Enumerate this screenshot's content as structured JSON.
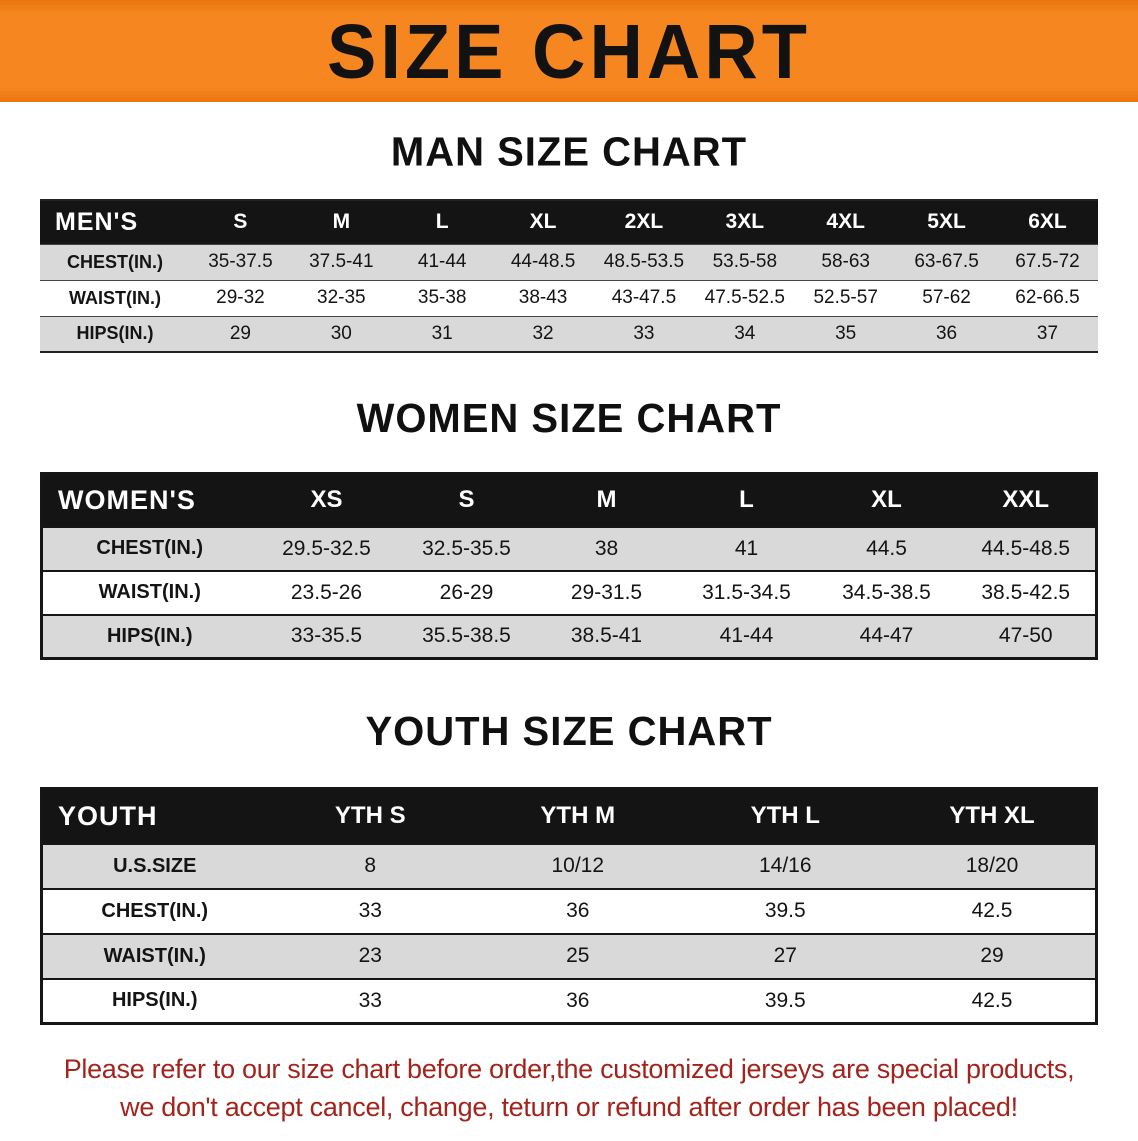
{
  "banner": {
    "title": "SIZE CHART"
  },
  "colors": {
    "banner_bg": "#f6861f",
    "header_bg": "#141414",
    "row_alt": "#d9d9d9",
    "note_red": "#a3241c"
  },
  "sections": {
    "men": {
      "heading": "MAN SIZE CHART",
      "table": {
        "header": [
          "MEN'S",
          "S",
          "M",
          "L",
          "XL",
          "2XL",
          "3XL",
          "4XL",
          "5XL",
          "6XL"
        ],
        "rows": [
          [
            "CHEST(IN.)",
            "35-37.5",
            "37.5-41",
            "41-44",
            "44-48.5",
            "48.5-53.5",
            "53.5-58",
            "58-63",
            "63-67.5",
            "67.5-72"
          ],
          [
            "WAIST(IN.)",
            "29-32",
            "32-35",
            "35-38",
            "38-43",
            "43-47.5",
            "47.5-52.5",
            "52.5-57",
            "57-62",
            "62-66.5"
          ],
          [
            "HIPS(IN.)",
            "29",
            "30",
            "31",
            "32",
            "33",
            "34",
            "35",
            "36",
            "37"
          ]
        ]
      }
    },
    "women": {
      "heading": "WOMEN SIZE CHART",
      "table": {
        "header": [
          "WOMEN'S",
          "XS",
          "S",
          "M",
          "L",
          "XL",
          "XXL"
        ],
        "rows": [
          [
            "CHEST(IN.)",
            "29.5-32.5",
            "32.5-35.5",
            "38",
            "41",
            "44.5",
            "44.5-48.5"
          ],
          [
            "WAIST(IN.)",
            "23.5-26",
            "26-29",
            "29-31.5",
            "31.5-34.5",
            "34.5-38.5",
            "38.5-42.5"
          ],
          [
            "HIPS(IN.)",
            "33-35.5",
            "35.5-38.5",
            "38.5-41",
            "41-44",
            "44-47",
            "47-50"
          ]
        ]
      }
    },
    "youth": {
      "heading": "YOUTH SIZE CHART",
      "table": {
        "header": [
          "YOUTH",
          "YTH S",
          "YTH M",
          "YTH L",
          "YTH XL"
        ],
        "rows": [
          [
            "U.S.SIZE",
            "8",
            "10/12",
            "14/16",
            "18/20"
          ],
          [
            "CHEST(IN.)",
            "33",
            "36",
            "39.5",
            "42.5"
          ],
          [
            "WAIST(IN.)",
            "23",
            "25",
            "27",
            "29"
          ],
          [
            "HIPS(IN.)",
            "33",
            "36",
            "39.5",
            "42.5"
          ]
        ]
      }
    }
  },
  "note": {
    "line1": "Please refer to our size chart before order,the customized jerseys are special products,",
    "line2": "we don't accept cancel, change, teturn or refund after order has been placed!"
  }
}
